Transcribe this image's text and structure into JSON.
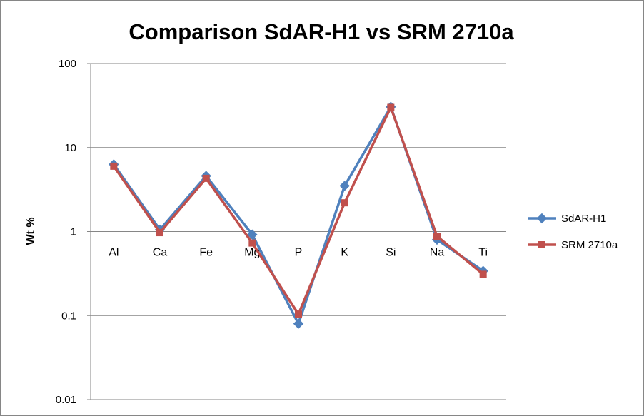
{
  "chart_data": {
    "type": "line",
    "title": "Comparison SdAR-H1 vs SRM 2710a",
    "xlabel": "",
    "ylabel": "Wt %",
    "yscale": "log",
    "ylim": [
      0.01,
      100
    ],
    "yticks": [
      "0.01",
      "0.1",
      "1",
      "10",
      "100"
    ],
    "categories": [
      "Al",
      "Ca",
      "Fe",
      "Mg",
      "P",
      "K",
      "Si",
      "Na",
      "Ti"
    ],
    "grid": true,
    "legend_position": "right",
    "series": [
      {
        "name": "SdAR-H1",
        "color": "#4F81BD",
        "marker": "diamond",
        "values": [
          6.3,
          1.05,
          4.6,
          0.92,
          0.08,
          3.5,
          30.5,
          0.8,
          0.34
        ]
      },
      {
        "name": "SRM 2710a",
        "color": "#C0504D",
        "marker": "square",
        "values": [
          6.0,
          0.97,
          4.3,
          0.73,
          0.104,
          2.2,
          30.0,
          0.88,
          0.31
        ]
      }
    ]
  }
}
